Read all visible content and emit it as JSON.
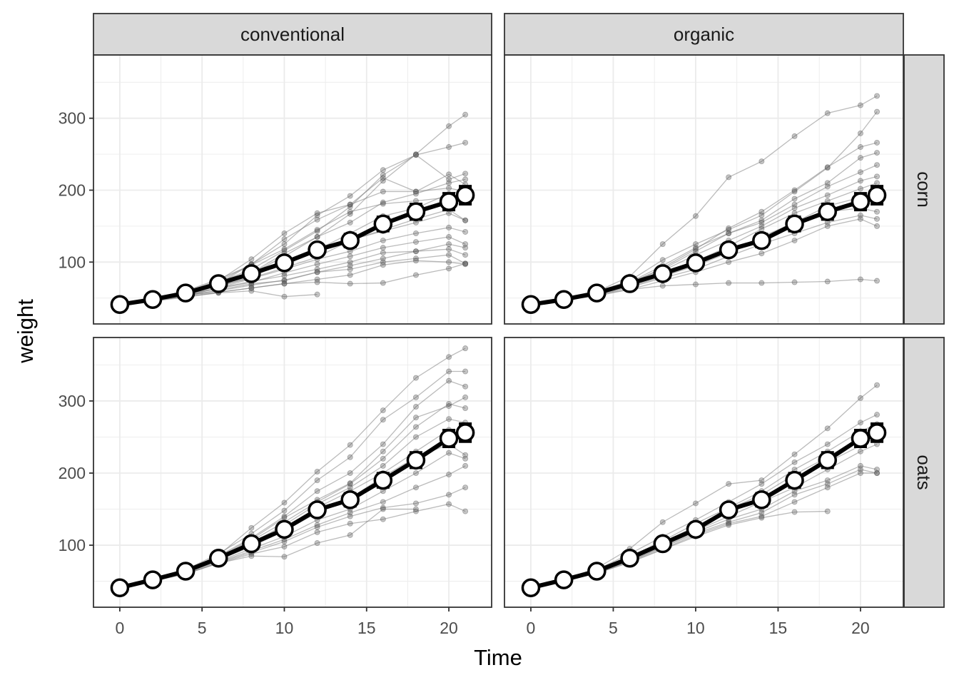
{
  "chart_data": {
    "type": "line",
    "xlabel": "Time",
    "ylabel": "weight",
    "xlim": [
      -1.6,
      22.6
    ],
    "ylim": [
      14,
      388
    ],
    "x_ticks": [
      0,
      5,
      10,
      15,
      20
    ],
    "x_tick_labels": [
      "0",
      "5",
      "10",
      "15",
      "20"
    ],
    "y_ticks": [
      100,
      200,
      300
    ],
    "y_tick_labels": [
      "100",
      "200",
      "300"
    ],
    "grid": true,
    "legend": "none",
    "col_facets": [
      "conventional",
      "organic"
    ],
    "row_facets": [
      "corn",
      "oats"
    ],
    "colors": {
      "individual": "#777777",
      "mean_line": "#000000",
      "mean_point_fill": "#ffffff",
      "strip_fill": "#d9d9d9",
      "panel_border": "#333333",
      "grid": "#ebebeb"
    },
    "time_points": [
      0,
      2,
      4,
      6,
      8,
      10,
      12,
      14,
      16,
      18,
      20,
      21
    ],
    "panels": [
      {
        "farm": "conventional",
        "feed": "corn",
        "mean": [
          41,
          48,
          57,
          70,
          84,
          99,
          117,
          130,
          153,
          170,
          184,
          193
        ],
        "individuals": [
          [
            41,
            48,
            56,
            68,
            84,
            108,
            135,
            167,
            213,
            250,
            289,
            305
          ],
          [
            41,
            49,
            58,
            72,
            90,
            116,
            143,
            177,
            221,
            249,
            260,
            266
          ],
          [
            41,
            49,
            58,
            73,
            97,
            125,
            165,
            192,
            228,
            249,
            215,
            223
          ],
          [
            41,
            49,
            59,
            74,
            104,
            140,
            168,
            180,
            217,
            198,
            222,
            208
          ],
          [
            41,
            48,
            57,
            70,
            97,
            132,
            159,
            180,
            198,
            198,
            203,
            198
          ],
          [
            41,
            47,
            57,
            70,
            85,
            112,
            135,
            155,
            183,
            195,
            210,
            215
          ],
          [
            41,
            49,
            60,
            76,
            96,
            118,
            145,
            170,
            181,
            185,
            190,
            185
          ],
          [
            41,
            48,
            57,
            68,
            80,
            98,
            117,
            140,
            164,
            175,
            195,
            200
          ],
          [
            41,
            48,
            55,
            66,
            79,
            101,
            120,
            131,
            143,
            155,
            168,
            158
          ],
          [
            41,
            47,
            56,
            67,
            78,
            92,
            107,
            130,
            145,
            160,
            173,
            158
          ],
          [
            41,
            45,
            53,
            64,
            77,
            90,
            104,
            115,
            130,
            140,
            148,
            142
          ],
          [
            41,
            48,
            56,
            63,
            72,
            85,
            97,
            108,
            120,
            128,
            135,
            125
          ],
          [
            41,
            48,
            54,
            64,
            73,
            81,
            90,
            100,
            113,
            115,
            125,
            120
          ],
          [
            41,
            47,
            54,
            60,
            68,
            75,
            86,
            95,
            105,
            115,
            118,
            110
          ],
          [
            41,
            46,
            53,
            61,
            70,
            74,
            86,
            90,
            100,
            105,
            110,
            98
          ],
          [
            41,
            46,
            51,
            58,
            64,
            70,
            76,
            82,
            96,
            102,
            100,
            97
          ],
          [
            41,
            47,
            52,
            57,
            60,
            52,
            55,
            null,
            null,
            null,
            null,
            null
          ],
          [
            41,
            48,
            54,
            58,
            64,
            70,
            72,
            70,
            71,
            82,
            91,
            98
          ]
        ]
      },
      {
        "farm": "organic",
        "feed": "corn",
        "mean": [
          41,
          48,
          57,
          70,
          84,
          99,
          117,
          130,
          153,
          170,
          184,
          193
        ],
        "individuals": [
          [
            41,
            49,
            59,
            80,
            125,
            164,
            218,
            240,
            275,
            307,
            318,
            331
          ],
          [
            41,
            49,
            59,
            74,
            103,
            125,
            145,
            165,
            198,
            231,
            279,
            309
          ],
          [
            41,
            48,
            56,
            70,
            92,
            118,
            147,
            170,
            200,
            232,
            260,
            266
          ],
          [
            41,
            48,
            57,
            72,
            95,
            120,
            140,
            158,
            188,
            210,
            245,
            252
          ],
          [
            41,
            49,
            58,
            72,
            90,
            115,
            140,
            155,
            180,
            205,
            225,
            235
          ],
          [
            41,
            47,
            56,
            70,
            88,
            110,
            130,
            150,
            175,
            193,
            213,
            219
          ],
          [
            41,
            48,
            57,
            68,
            84,
            101,
            122,
            146,
            168,
            185,
            202,
            210
          ],
          [
            41,
            48,
            55,
            66,
            80,
            97,
            115,
            135,
            155,
            178,
            190,
            199
          ],
          [
            41,
            47,
            55,
            68,
            80,
            95,
            113,
            132,
            150,
            170,
            175,
            170
          ],
          [
            41,
            46,
            54,
            65,
            78,
            90,
            108,
            125,
            140,
            155,
            165,
            160
          ],
          [
            41,
            47,
            53,
            62,
            74,
            86,
            100,
            112,
            130,
            150,
            160,
            150
          ],
          [
            41,
            48,
            55,
            62,
            67,
            69,
            71,
            71,
            72,
            73,
            76,
            74
          ]
        ]
      },
      {
        "farm": "conventional",
        "feed": "oats",
        "mean": [
          41,
          52,
          64,
          82,
          102,
          122,
          149,
          163,
          190,
          218,
          248,
          256
        ],
        "individuals": [
          [
            41,
            52,
            65,
            86,
            124,
            159,
            202,
            239,
            287,
            332,
            361,
            373
          ],
          [
            41,
            53,
            66,
            88,
            116,
            148,
            190,
            222,
            274,
            305,
            341,
            341
          ],
          [
            41,
            51,
            64,
            85,
            110,
            140,
            175,
            200,
            240,
            292,
            328,
            320
          ],
          [
            41,
            52,
            63,
            84,
            108,
            138,
            163,
            186,
            230,
            277,
            293,
            305
          ],
          [
            41,
            52,
            64,
            83,
            106,
            132,
            160,
            185,
            220,
            264,
            296,
            290
          ],
          [
            41,
            51,
            65,
            82,
            103,
            128,
            157,
            180,
            210,
            250,
            275,
            270
          ],
          [
            41,
            52,
            64,
            81,
            100,
            125,
            152,
            175,
            200,
            230,
            260,
            250
          ],
          [
            41,
            51,
            63,
            80,
            98,
            120,
            145,
            165,
            195,
            222,
            240,
            225
          ],
          [
            41,
            52,
            62,
            78,
            95,
            112,
            135,
            150,
            175,
            200,
            228,
            220
          ],
          [
            41,
            51,
            62,
            77,
            92,
            108,
            128,
            145,
            160,
            180,
            198,
            210
          ],
          [
            41,
            50,
            60,
            76,
            90,
            105,
            125,
            140,
            152,
            158,
            170,
            180
          ],
          [
            41,
            51,
            60,
            75,
            88,
            98,
            118,
            130,
            136,
            147,
            157,
            147
          ],
          [
            41,
            52,
            61,
            75,
            85,
            84,
            103,
            114,
            150,
            150,
            null,
            null
          ]
        ]
      },
      {
        "farm": "organic",
        "feed": "oats",
        "mean": [
          41,
          52,
          64,
          82,
          102,
          122,
          149,
          163,
          190,
          218,
          248,
          256
        ],
        "individuals": [
          [
            41,
            53,
            68,
            95,
            132,
            158,
            185,
            190,
            226,
            262,
            304,
            322
          ],
          [
            41,
            52,
            66,
            88,
            112,
            135,
            160,
            185,
            215,
            240,
            270,
            281
          ],
          [
            41,
            51,
            64,
            84,
            106,
            130,
            152,
            175,
            205,
            230,
            258,
            268
          ],
          [
            41,
            52,
            64,
            82,
            104,
            126,
            150,
            170,
            198,
            222,
            250,
            260
          ],
          [
            41,
            51,
            63,
            80,
            100,
            122,
            145,
            165,
            190,
            215,
            238,
            250
          ],
          [
            41,
            52,
            63,
            80,
            99,
            120,
            140,
            160,
            180,
            205,
            230,
            240
          ],
          [
            41,
            50,
            62,
            78,
            98,
            118,
            136,
            150,
            175,
            190,
            210,
            205
          ],
          [
            41,
            51,
            62,
            78,
            97,
            116,
            132,
            145,
            170,
            185,
            205,
            200
          ],
          [
            41,
            51,
            61,
            77,
            95,
            114,
            130,
            140,
            160,
            180,
            200,
            200
          ],
          [
            41,
            50,
            61,
            76,
            94,
            112,
            128,
            138,
            146,
            147,
            null,
            null
          ]
        ]
      }
    ]
  }
}
